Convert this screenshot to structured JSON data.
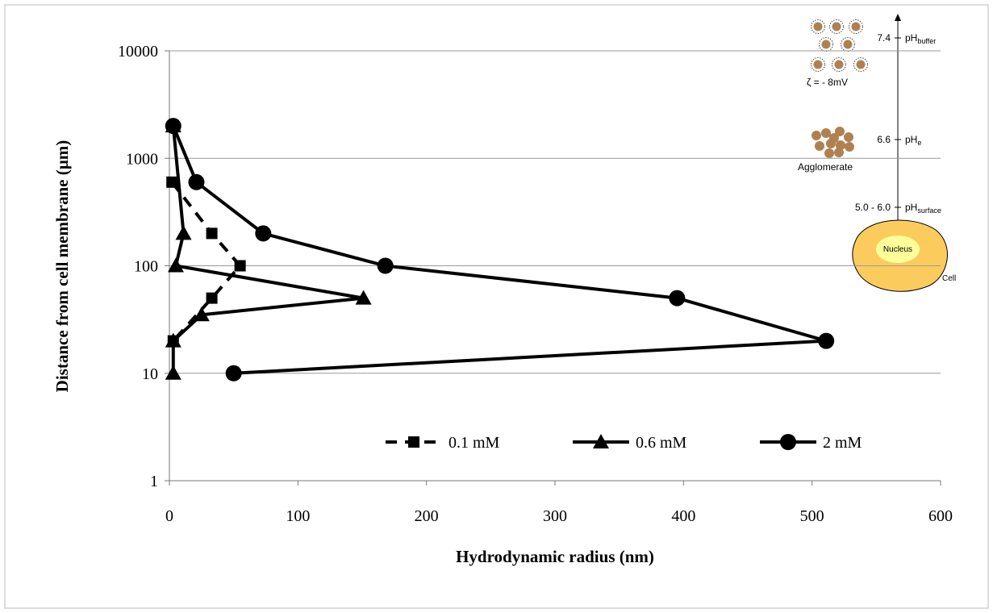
{
  "chart_data": {
    "type": "line",
    "xlabel": "Hydrodynamic radius (nm)",
    "ylabel": "Distance from cell membrane (µm)",
    "xlim": [
      0,
      600
    ],
    "xticks": [
      0,
      100,
      200,
      300,
      400,
      500,
      600
    ],
    "ylim": [
      1,
      10000
    ],
    "yticks": [
      1,
      10,
      100,
      1000,
      10000
    ],
    "y_scale": "log",
    "grid": true,
    "legend": "bottom",
    "series": [
      {
        "name": "0.1 mM",
        "color": "#000000",
        "marker": "square",
        "line_style": "dashed",
        "x": [
          2,
          33,
          55,
          33,
          3
        ],
        "values": [
          600,
          200,
          100,
          50,
          20
        ]
      },
      {
        "name": "0.6 mM",
        "color": "#000000",
        "marker": "triangle",
        "line_style": "solid",
        "x": [
          3,
          11,
          5,
          151,
          25,
          3,
          3
        ],
        "values": [
          2000,
          200,
          100,
          50,
          35,
          20,
          10
        ]
      },
      {
        "name": "2 mM",
        "color": "#000000",
        "marker": "circle",
        "line_style": "solid",
        "x": [
          3,
          21,
          73,
          168,
          395,
          511,
          50
        ],
        "values": [
          2000,
          600,
          200,
          100,
          50,
          20,
          10
        ]
      }
    ],
    "annotations": [
      "7.4",
      "pH",
      "buffer",
      "ζ = - 8mV",
      "6.6",
      "pH",
      "e",
      "Agglomerate",
      "5.0 - 6.0",
      "pH",
      "surface",
      "Nucleus",
      "Cell"
    ]
  }
}
